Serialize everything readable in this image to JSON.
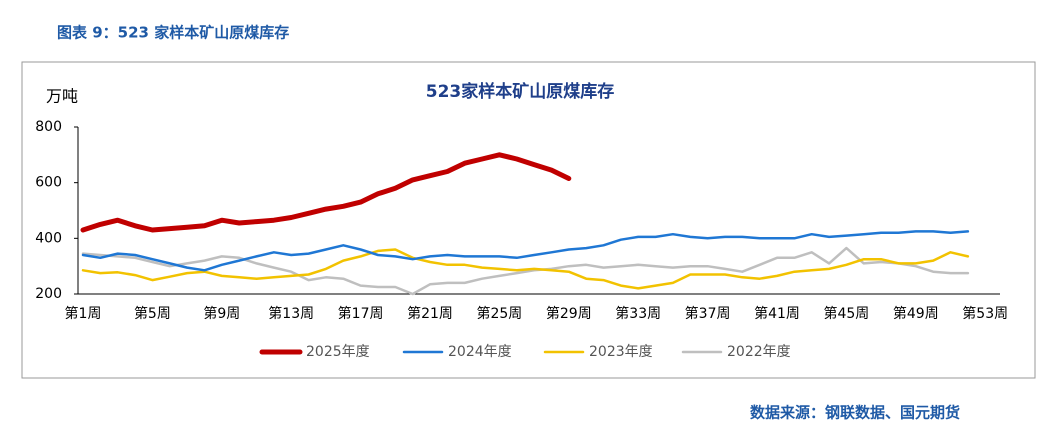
{
  "header": "图表 9：523 家样本矿山原煤库存",
  "source": "数据来源：钢联数据、国元期货",
  "chart_data": {
    "type": "line",
    "title": "523家样本矿山原煤库存",
    "y_label": "万吨",
    "categories": [
      "第1周",
      null,
      null,
      null,
      "第5周",
      null,
      null,
      null,
      "第9周",
      null,
      null,
      null,
      "第13周",
      null,
      null,
      null,
      "第17周",
      null,
      null,
      null,
      "第21周",
      null,
      null,
      null,
      "第25周",
      null,
      null,
      null,
      "第29周",
      null,
      null,
      null,
      "第33周",
      null,
      null,
      null,
      "第37周",
      null,
      null,
      null,
      "第41周",
      null,
      null,
      null,
      "第45周",
      null,
      null,
      null,
      "第49周",
      null,
      null,
      null,
      "第53周"
    ],
    "ylim": [
      200,
      800
    ],
    "yticks": [
      200,
      400,
      600,
      800
    ],
    "grid": false,
    "legend": "bottom",
    "series": [
      {
        "name": "2025年度",
        "color": "#c00000",
        "values": [
          430,
          450,
          465,
          445,
          430,
          435,
          440,
          445,
          465,
          455,
          460,
          465,
          475,
          490,
          505,
          515,
          530,
          560,
          580,
          610,
          625,
          640,
          670,
          685,
          700,
          685,
          665,
          645,
          615,
          null,
          null,
          null,
          null,
          null,
          null,
          null,
          null,
          null,
          null,
          null,
          null,
          null,
          null,
          null,
          null,
          null,
          null,
          null,
          null,
          null,
          null,
          null,
          null
        ]
      },
      {
        "name": "2024年度",
        "color": "#1f77d4",
        "values": [
          340,
          330,
          345,
          340,
          325,
          310,
          295,
          285,
          305,
          320,
          335,
          350,
          340,
          345,
          360,
          375,
          360,
          340,
          335,
          325,
          335,
          340,
          335,
          335,
          335,
          330,
          340,
          350,
          360,
          365,
          375,
          395,
          405,
          405,
          415,
          405,
          400,
          405,
          405,
          400,
          400,
          400,
          415,
          405,
          410,
          415,
          420,
          420,
          425,
          425,
          420,
          425,
          null
        ]
      },
      {
        "name": "2023年度",
        "color": "#f2c200",
        "values": [
          285,
          275,
          278,
          268,
          250,
          262,
          275,
          280,
          265,
          260,
          255,
          260,
          265,
          270,
          290,
          320,
          335,
          355,
          360,
          330,
          315,
          305,
          305,
          295,
          290,
          285,
          290,
          285,
          280,
          255,
          250,
          230,
          220,
          230,
          240,
          270,
          270,
          270,
          260,
          255,
          265,
          280,
          285,
          290,
          305,
          325,
          325,
          310,
          310,
          320,
          350,
          335,
          null
        ]
      },
      {
        "name": "2022年度",
        "color": "#bfbfbf",
        "values": [
          345,
          340,
          335,
          330,
          315,
          300,
          310,
          320,
          335,
          330,
          310,
          295,
          280,
          250,
          260,
          255,
          230,
          225,
          225,
          200,
          235,
          240,
          240,
          255,
          265,
          275,
          285,
          290,
          300,
          305,
          295,
          300,
          305,
          300,
          295,
          300,
          300,
          290,
          280,
          305,
          330,
          330,
          350,
          310,
          365,
          310,
          315,
          310,
          300,
          280,
          275,
          275,
          null
        ]
      }
    ]
  }
}
